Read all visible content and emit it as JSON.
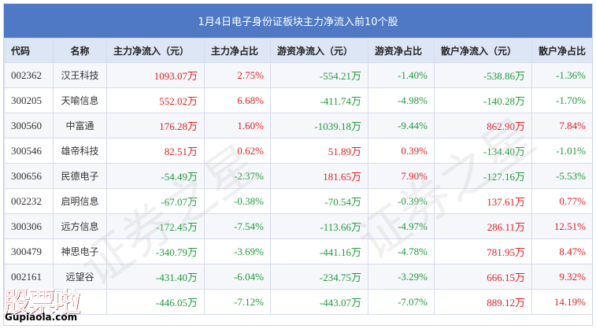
{
  "title": "1月4日电子身份证板块主力净流入前10个股",
  "headers": [
    "代码",
    "名称",
    "主力净流入（元）",
    "主力净占比",
    "游资净流入（元）",
    "游资净占比",
    "散户净流入（元）",
    "散户净占比"
  ],
  "rows": [
    {
      "code": "002362",
      "name": "汉王科技",
      "main_in": "1093.07万",
      "main_pct": "2.75%",
      "hot_in": "-554.21万",
      "hot_pct": "-1.40%",
      "retail_in": "-538.86万",
      "retail_pct": "-1.36%"
    },
    {
      "code": "300205",
      "name": "天喻信息",
      "main_in": "552.02万",
      "main_pct": "6.68%",
      "hot_in": "-411.74万",
      "hot_pct": "-4.98%",
      "retail_in": "-140.28万",
      "retail_pct": "-1.70%"
    },
    {
      "code": "300560",
      "name": "中富通",
      "main_in": "176.28万",
      "main_pct": "1.60%",
      "hot_in": "-1039.18万",
      "hot_pct": "-9.44%",
      "retail_in": "862.90万",
      "retail_pct": "7.84%"
    },
    {
      "code": "300546",
      "name": "雄帝科技",
      "main_in": "82.51万",
      "main_pct": "0.62%",
      "hot_in": "51.89万",
      "hot_pct": "0.39%",
      "retail_in": "-134.40万",
      "retail_pct": "-1.01%"
    },
    {
      "code": "300656",
      "name": "民德电子",
      "main_in": "-54.49万",
      "main_pct": "-2.37%",
      "hot_in": "181.65万",
      "hot_pct": "7.90%",
      "retail_in": "-127.16万",
      "retail_pct": "-5.53%"
    },
    {
      "code": "002232",
      "name": "启明信息",
      "main_in": "-67.07万",
      "main_pct": "-0.38%",
      "hot_in": "-70.54万",
      "hot_pct": "-0.39%",
      "retail_in": "137.61万",
      "retail_pct": "0.77%"
    },
    {
      "code": "300306",
      "name": "远方信息",
      "main_in": "-172.45万",
      "main_pct": "-7.54%",
      "hot_in": "-113.66万",
      "hot_pct": "-4.97%",
      "retail_in": "286.11万",
      "retail_pct": "12.51%"
    },
    {
      "code": "300479",
      "name": "神思电子",
      "main_in": "-340.79万",
      "main_pct": "-3.69%",
      "hot_in": "-441.16万",
      "hot_pct": "-4.78%",
      "retail_in": "781.95万",
      "retail_pct": "8.47%"
    },
    {
      "code": "002161",
      "name": "远望谷",
      "main_in": "-431.40万",
      "main_pct": "-6.04%",
      "hot_in": "-234.75万",
      "hot_pct": "-3.29%",
      "retail_in": "666.15万",
      "retail_pct": "9.32%"
    },
    {
      "code": "",
      "name": "",
      "main_in": "-446.05万",
      "main_pct": "-7.12%",
      "hot_in": "-443.07万",
      "hot_pct": "-7.07%",
      "retail_in": "889.12万",
      "retail_pct": "14.19%"
    }
  ],
  "watermark": {
    "text": "证券之星"
  },
  "logo": {
    "main": "股票啦",
    "site": "Gupiaola.com"
  },
  "colors": {
    "header_bg": "#4f79c5",
    "positive": "#e02020",
    "negative": "#1e9b3a"
  }
}
